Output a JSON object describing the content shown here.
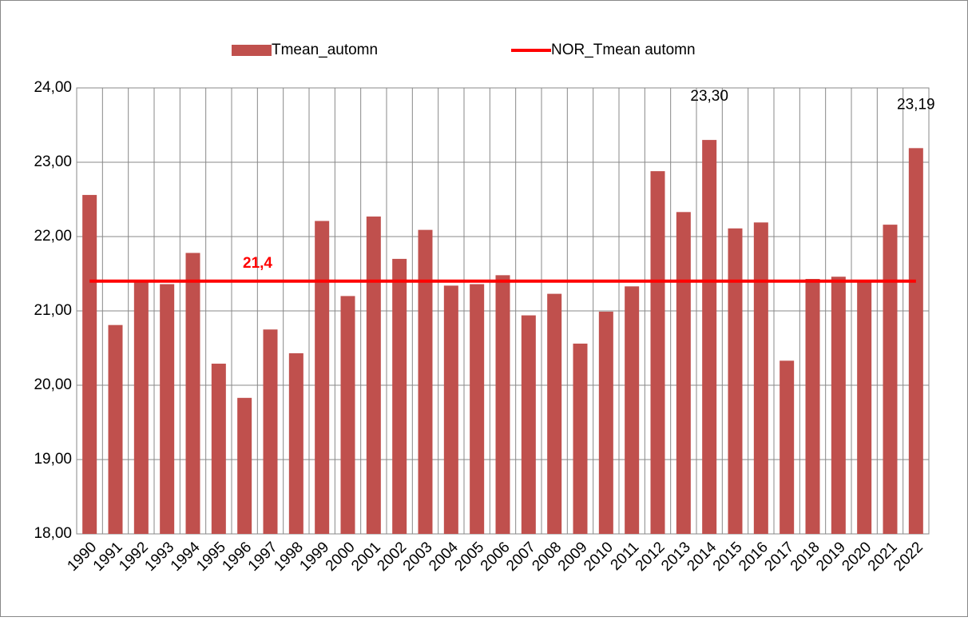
{
  "chart_data": {
    "type": "bar",
    "categories": [
      "1990",
      "1991",
      "1992",
      "1993",
      "1994",
      "1995",
      "1996",
      "1997",
      "1998",
      "1999",
      "2000",
      "2001",
      "2002",
      "2003",
      "2004",
      "2005",
      "2006",
      "2007",
      "2008",
      "2009",
      "2010",
      "2011",
      "2012",
      "2013",
      "2014",
      "2015",
      "2016",
      "2017",
      "2018",
      "2019",
      "2020",
      "2021",
      "2022"
    ],
    "series": [
      {
        "name": "Tmean_automn",
        "type": "bar",
        "color": "#c0504d",
        "values": [
          22.56,
          20.81,
          21.4,
          21.36,
          21.78,
          20.29,
          19.83,
          20.75,
          20.43,
          22.21,
          21.2,
          22.27,
          21.7,
          22.09,
          21.34,
          21.36,
          21.48,
          20.94,
          21.23,
          20.56,
          20.99,
          21.33,
          22.88,
          22.33,
          23.3,
          22.11,
          22.19,
          20.33,
          21.43,
          21.46,
          21.41,
          22.16,
          23.19
        ],
        "value_labels": [
          null,
          null,
          null,
          null,
          null,
          null,
          null,
          null,
          null,
          null,
          null,
          null,
          null,
          null,
          null,
          null,
          null,
          null,
          null,
          null,
          null,
          null,
          null,
          null,
          "23,30",
          null,
          null,
          null,
          null,
          null,
          null,
          null,
          "23,19"
        ]
      },
      {
        "name": "NOR_Tmean automn",
        "type": "line",
        "color": "#ff0000",
        "values": [
          21.4,
          21.4,
          21.4,
          21.4,
          21.4,
          21.4,
          21.4,
          21.4,
          21.4,
          21.4,
          21.4,
          21.4,
          21.4,
          21.4,
          21.4,
          21.4,
          21.4,
          21.4,
          21.4,
          21.4,
          21.4,
          21.4,
          21.4,
          21.4,
          21.4,
          21.4,
          21.4,
          21.4,
          21.4,
          21.4,
          21.4,
          21.4,
          21.4
        ],
        "value_labels": [
          null,
          null,
          null,
          null,
          null,
          null,
          null,
          "21,4",
          null,
          null,
          null,
          null,
          null,
          null,
          null,
          null,
          null,
          null,
          null,
          null,
          null,
          null,
          null,
          null,
          null,
          null,
          null,
          null,
          null,
          null,
          null,
          null,
          null
        ]
      }
    ],
    "ylim": [
      18,
      24
    ],
    "yticks": [
      {
        "value": 18,
        "label": "18,00"
      },
      {
        "value": 19,
        "label": "19,00"
      },
      {
        "value": 20,
        "label": "20,00"
      },
      {
        "value": 21,
        "label": "21,00"
      },
      {
        "value": 22,
        "label": "22,00"
      },
      {
        "value": 23,
        "label": "23,00"
      },
      {
        "value": 24,
        "label": "24,00"
      }
    ],
    "grid": true,
    "legend": "top"
  }
}
